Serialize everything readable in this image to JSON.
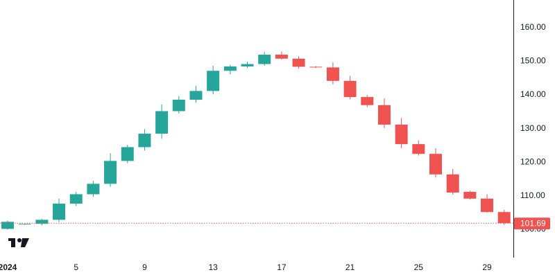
{
  "chart_data": {
    "type": "candlestick",
    "title": "",
    "xlabel": "",
    "ylabel": "",
    "ylim": [
      97,
      171
    ],
    "grid": false,
    "colors": {
      "up": "#26a69a",
      "down": "#ef5350",
      "last_price_line": "#ef5350",
      "axis_line": "#131722"
    },
    "y_ticks": [
      "100.00",
      "110.00",
      "120.00",
      "130.00",
      "140.00",
      "150.00",
      "160.00"
    ],
    "x_ticks": [
      {
        "day": 1,
        "label": "2024",
        "bold": true
      },
      {
        "day": 5,
        "label": "5"
      },
      {
        "day": 9,
        "label": "9"
      },
      {
        "day": 13,
        "label": "13"
      },
      {
        "day": 17,
        "label": "17"
      },
      {
        "day": 21,
        "label": "21"
      },
      {
        "day": 25,
        "label": "25"
      },
      {
        "day": 29,
        "label": "29"
      }
    ],
    "candles": [
      {
        "day": 1,
        "open": 100.0,
        "high": 102.5,
        "low": 99.8,
        "close": 102.1
      },
      {
        "day": 2,
        "open": 101.4,
        "high": 101.6,
        "low": 101.2,
        "close": 101.5
      },
      {
        "day": 3,
        "open": 101.5,
        "high": 103.0,
        "low": 101.0,
        "close": 102.7
      },
      {
        "day": 4,
        "open": 102.7,
        "high": 109.0,
        "low": 102.0,
        "close": 107.5
      },
      {
        "day": 5,
        "open": 107.5,
        "high": 111.0,
        "low": 106.8,
        "close": 110.3
      },
      {
        "day": 6,
        "open": 110.3,
        "high": 114.3,
        "low": 109.5,
        "close": 113.4
      },
      {
        "day": 7,
        "open": 113.4,
        "high": 122.5,
        "low": 112.5,
        "close": 120.2
      },
      {
        "day": 8,
        "open": 120.2,
        "high": 125.0,
        "low": 119.5,
        "close": 124.3
      },
      {
        "day": 9,
        "open": 124.3,
        "high": 129.7,
        "low": 123.3,
        "close": 128.3
      },
      {
        "day": 10,
        "open": 128.3,
        "high": 137.0,
        "low": 126.8,
        "close": 135.0
      },
      {
        "day": 11,
        "open": 135.0,
        "high": 139.5,
        "low": 134.3,
        "close": 138.4
      },
      {
        "day": 12,
        "open": 138.4,
        "high": 142.5,
        "low": 137.5,
        "close": 141.0
      },
      {
        "day": 13,
        "open": 141.0,
        "high": 148.5,
        "low": 140.0,
        "close": 147.0
      },
      {
        "day": 14,
        "open": 147.0,
        "high": 148.8,
        "low": 146.0,
        "close": 148.3
      },
      {
        "day": 15,
        "open": 148.3,
        "high": 149.7,
        "low": 147.8,
        "close": 149.0
      },
      {
        "day": 16,
        "open": 149.0,
        "high": 152.7,
        "low": 148.5,
        "close": 151.8
      },
      {
        "day": 17,
        "open": 151.8,
        "high": 152.7,
        "low": 150.3,
        "close": 150.6
      },
      {
        "day": 18,
        "open": 150.6,
        "high": 151.3,
        "low": 147.7,
        "close": 148.2
      },
      {
        "day": 19,
        "open": 148.2,
        "high": 148.4,
        "low": 147.8,
        "close": 148.0
      },
      {
        "day": 20,
        "open": 148.0,
        "high": 149.5,
        "low": 143.0,
        "close": 144.0
      },
      {
        "day": 21,
        "open": 144.0,
        "high": 145.5,
        "low": 138.5,
        "close": 139.2
      },
      {
        "day": 22,
        "open": 139.2,
        "high": 139.8,
        "low": 136.2,
        "close": 136.8
      },
      {
        "day": 23,
        "open": 136.8,
        "high": 138.8,
        "low": 130.0,
        "close": 131.0
      },
      {
        "day": 24,
        "open": 131.0,
        "high": 133.0,
        "low": 124.0,
        "close": 125.2
      },
      {
        "day": 25,
        "open": 125.2,
        "high": 126.3,
        "low": 121.8,
        "close": 122.3
      },
      {
        "day": 26,
        "open": 122.3,
        "high": 124.0,
        "low": 115.3,
        "close": 116.2
      },
      {
        "day": 27,
        "open": 116.2,
        "high": 117.8,
        "low": 110.2,
        "close": 110.8
      },
      {
        "day": 28,
        "open": 111.0,
        "high": 111.3,
        "low": 108.7,
        "close": 109.0
      },
      {
        "day": 29,
        "open": 109.0,
        "high": 110.3,
        "low": 104.8,
        "close": 105.0
      },
      {
        "day": 30,
        "open": 105.0,
        "high": 105.7,
        "low": 101.2,
        "close": 101.69
      }
    ],
    "last_price": 101.69,
    "last_price_label": "101.69"
  }
}
